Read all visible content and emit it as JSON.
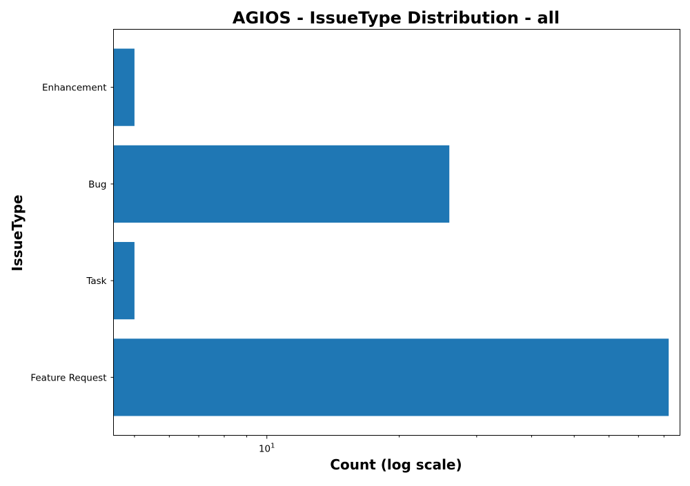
{
  "chart_data": {
    "type": "bar",
    "orientation": "horizontal",
    "title": "AGIOS - IssueType Distribution - all",
    "xlabel": "Count (log scale)",
    "ylabel": "IssueType",
    "x_scale": "log",
    "xlim": [
      4.48,
      87
    ],
    "categories": [
      "Feature Request",
      "Task",
      "Bug",
      "Enhancement"
    ],
    "values": [
      82,
      5,
      26,
      5
    ],
    "x_tick_label": {
      "base": "10",
      "exponent": "1"
    },
    "bar_color": "#1f77b4",
    "grid": false,
    "legend": false
  }
}
